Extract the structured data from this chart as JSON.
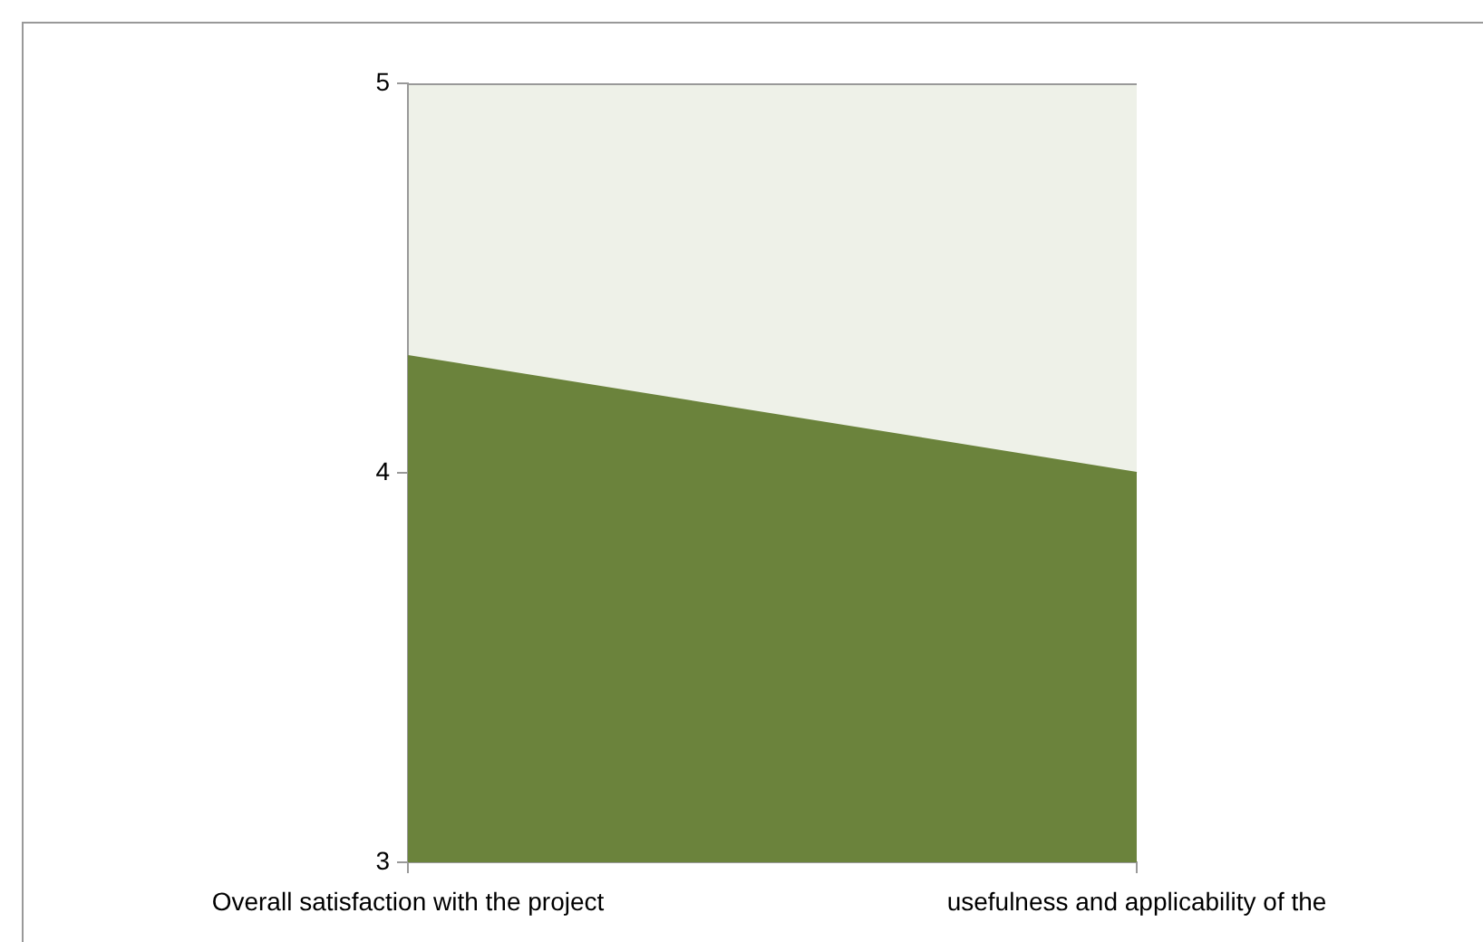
{
  "chart_data": {
    "type": "area",
    "categories": [
      "Overall satisfaction with the project",
      "usefulness and applicability of the"
    ],
    "series": [
      {
        "color": "#6b833c",
        "values": [
          4.3,
          4.0
        ]
      }
    ],
    "ylim": [
      3,
      5
    ],
    "yticks": [
      3,
      4,
      5
    ],
    "bands": [
      {
        "axis": "y",
        "from": 4,
        "to": 5,
        "color": "#eef1e8"
      }
    ]
  }
}
